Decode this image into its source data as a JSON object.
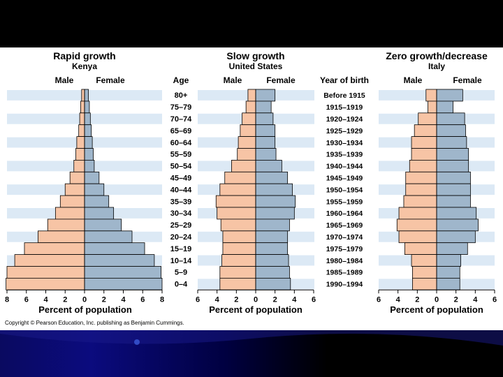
{
  "colors": {
    "male": "#F7C4A5",
    "female": "#9FB6CB",
    "band": "#DCE9F5",
    "stroke": "#000000"
  },
  "copyright": "Copyright © Pearson Education, Inc. publishing as Benjamin Cummings.",
  "labels": {
    "male": "Male",
    "female": "Female",
    "age": "Age",
    "year_of_birth": "Year of birth",
    "xlabel": "Percent of population"
  },
  "age_groups": [
    "80+",
    "75–79",
    "70–74",
    "65–69",
    "60–64",
    "55–59",
    "50–54",
    "45–49",
    "40–44",
    "35–39",
    "30–34",
    "25–29",
    "20–24",
    "15–19",
    "10–14",
    "5–9",
    "0–4"
  ],
  "birth_years": [
    "Before 1915",
    "1915–1919",
    "1920–1924",
    "1925–1929",
    "1930–1934",
    "1935–1939",
    "1940–1944",
    "1945–1949",
    "1950–1954",
    "1955–1959",
    "1960–1964",
    "1965–1969",
    "1970–1974",
    "1975–1979",
    "1980–1984",
    "1985–1989",
    "1990–1994"
  ],
  "chart_data": [
    {
      "type": "bar",
      "title": "Rapid growth",
      "subtitle": "Kenya",
      "categories": [
        "80+",
        "75–79",
        "70–74",
        "65–69",
        "60–64",
        "55–59",
        "50–54",
        "45–49",
        "40–44",
        "35–39",
        "30–34",
        "25–29",
        "20–24",
        "15–19",
        "10–14",
        "5–9",
        "0–4"
      ],
      "series": [
        {
          "name": "Male",
          "values": [
            0.3,
            0.4,
            0.5,
            0.6,
            0.8,
            0.9,
            1.1,
            1.5,
            2.0,
            2.5,
            3.0,
            3.8,
            4.8,
            6.2,
            7.2,
            8.0,
            8.1
          ]
        },
        {
          "name": "Female",
          "values": [
            0.4,
            0.5,
            0.6,
            0.7,
            0.8,
            0.9,
            1.0,
            1.5,
            2.0,
            2.5,
            3.0,
            3.8,
            4.9,
            6.2,
            7.2,
            7.9,
            8.0
          ]
        }
      ],
      "xticks": [
        "8",
        "6",
        "4",
        "2",
        "0",
        "2",
        "4",
        "6",
        "8"
      ],
      "xlim": [
        -8,
        8
      ],
      "xlabel": "Percent of population"
    },
    {
      "type": "bar",
      "title": "Slow growth",
      "subtitle": "United States",
      "categories": [
        "80+",
        "75–79",
        "70–74",
        "65–69",
        "60–64",
        "55–59",
        "50–54",
        "45–49",
        "40–44",
        "35–39",
        "30–34",
        "25–29",
        "20–24",
        "15–19",
        "10–14",
        "5–9",
        "0–4"
      ],
      "series": [
        {
          "name": "Male",
          "values": [
            0.8,
            1.0,
            1.4,
            1.6,
            1.8,
            1.9,
            2.5,
            3.2,
            3.7,
            4.1,
            4.0,
            3.6,
            3.4,
            3.4,
            3.5,
            3.7,
            3.7
          ]
        },
        {
          "name": "Female",
          "values": [
            2.0,
            1.6,
            1.8,
            2.0,
            2.0,
            2.1,
            2.7,
            3.3,
            3.8,
            4.1,
            4.0,
            3.5,
            3.3,
            3.3,
            3.4,
            3.5,
            3.6
          ]
        }
      ],
      "xticks": [
        "6",
        "4",
        "2",
        "0",
        "2",
        "4",
        "6"
      ],
      "xlim": [
        -6,
        6
      ],
      "xlabel": "Percent of population"
    },
    {
      "type": "bar",
      "title": "Zero growth/decrease",
      "subtitle": "Italy",
      "categories": [
        "80+",
        "75–79",
        "70–74",
        "65–69",
        "60–64",
        "55–59",
        "50–54",
        "45–49",
        "40–44",
        "35–39",
        "30–34",
        "25–29",
        "20–24",
        "15–19",
        "10–14",
        "5–9",
        "0–4"
      ],
      "series": [
        {
          "name": "Male",
          "values": [
            1.1,
            0.9,
            1.9,
            2.3,
            2.6,
            2.6,
            2.8,
            3.2,
            3.2,
            3.4,
            3.9,
            4.1,
            3.9,
            3.3,
            2.6,
            2.5,
            2.5
          ]
        },
        {
          "name": "Female",
          "values": [
            2.7,
            1.7,
            2.9,
            3.0,
            3.1,
            3.3,
            3.3,
            3.5,
            3.5,
            3.5,
            4.1,
            4.3,
            4.0,
            3.2,
            2.5,
            2.4,
            2.4
          ]
        }
      ],
      "xticks": [
        "6",
        "4",
        "2",
        "0",
        "2",
        "4",
        "6"
      ],
      "xlim": [
        -6,
        6
      ],
      "xlabel": "Percent of population"
    }
  ]
}
